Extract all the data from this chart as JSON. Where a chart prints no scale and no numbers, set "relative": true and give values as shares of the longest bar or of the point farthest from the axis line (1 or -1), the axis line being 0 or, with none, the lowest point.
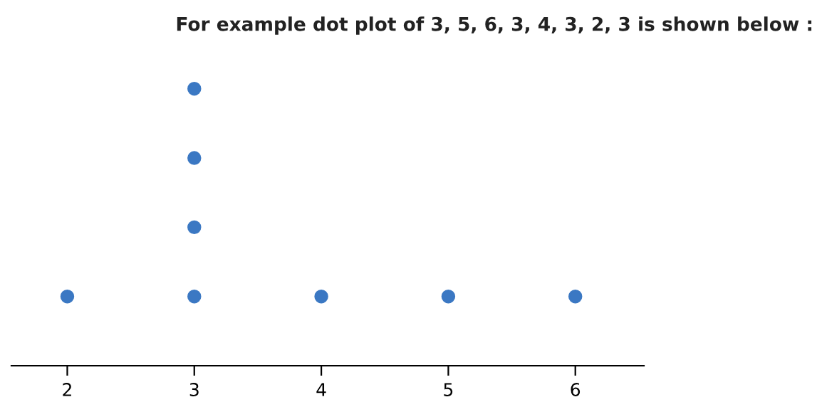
{
  "chart_data": {
    "type": "scatter",
    "title": "For example dot plot of 3, 5, 6, 3, 4, 3, 2, 3 is shown below :",
    "relative": true,
    "x": [
      2,
      3,
      3,
      3,
      3,
      4,
      5,
      6
    ],
    "values": [
      0.25,
      0.25,
      0.5,
      0.75,
      1,
      0.25,
      0.25,
      0.25
    ],
    "color": "#3b78c3",
    "marker": "circle",
    "xlim": [
      1.56,
      6.54
    ],
    "xticks": [
      2,
      3,
      4,
      5,
      6
    ],
    "tick_labels": "x",
    "grid": false
  }
}
